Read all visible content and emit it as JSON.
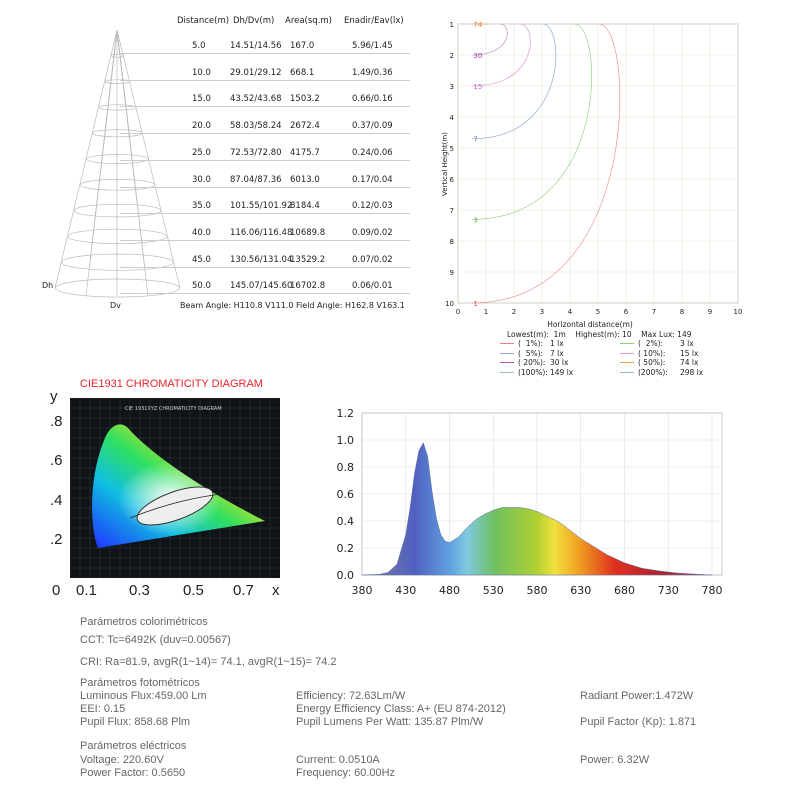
{
  "beam_table": {
    "headers": [
      "Distance(m)",
      "Dh/Dv(m)",
      "Area(sq.m)",
      "Enadir/Eav(lx)"
    ],
    "rows": [
      [
        "5.0",
        "14.51/14.56",
        "167.0",
        "5.96/1.45"
      ],
      [
        "10.0",
        "29.01/29.12",
        "668.1",
        "1.49/0.36"
      ],
      [
        "15.0",
        "43.52/43.68",
        "1503.2",
        "0.66/0.16"
      ],
      [
        "20.0",
        "58.03/58.24",
        "2672.4",
        "0.37/0.09"
      ],
      [
        "25.0",
        "72.53/72.80",
        "4175.7",
        "0.24/0.06"
      ],
      [
        "30.0",
        "87.04/87.36",
        "6013.0",
        "0.17/0.04"
      ],
      [
        "35.0",
        "101.55/101.92",
        "8184.4",
        "0.12/0.03"
      ],
      [
        "40.0",
        "116.06/116.48",
        "10689.8",
        "0.09/0.02"
      ],
      [
        "45.0",
        "130.56/131.04",
        "13529.2",
        "0.07/0.02"
      ],
      [
        "50.0",
        "145.07/145.60",
        "16702.8",
        "0.06/0.01"
      ]
    ],
    "dh_label": "Dh",
    "dv_label": "Dv",
    "angles": "Beam Angle: H110.8 V111.0  Field Angle: H162.8 V163.1"
  },
  "chart_data": [
    {
      "type": "line",
      "title": "",
      "xlabel": "Horizontal distance(m)",
      "ylabel": "Vertical Height(m)",
      "xlim": [
        0,
        10
      ],
      "ylim": [
        1,
        10
      ],
      "x_ticks": [
        "0",
        "1",
        "2",
        "3",
        "4",
        "5",
        "6",
        "7",
        "8",
        "9",
        "10"
      ],
      "y_ticks": [
        "1",
        "2",
        "3",
        "4",
        "5",
        "6",
        "7",
        "8",
        "9",
        "10"
      ],
      "grid": true,
      "contour_labels": [
        {
          "text": "74",
          "color": "#f08030"
        },
        {
          "text": "30",
          "color": "#a040a0"
        },
        {
          "text": "15",
          "color": "#c060c0"
        },
        {
          "text": "7",
          "color": "#5070c0"
        },
        {
          "text": "3",
          "color": "#60b040"
        },
        {
          "text": "1",
          "color": "#e05050"
        }
      ],
      "summary": "Lowest(m):  1m    Highest(m): 10    Max Lux: 149",
      "legend": [
        {
          "pct": "(  1%):",
          "lux": "1 lx",
          "color": "#f08080"
        },
        {
          "pct": "(  2%):",
          "lux": "3 lx",
          "color": "#90d070"
        },
        {
          "pct": "(  5%):",
          "lux": "7 lx",
          "color": "#90a8d8"
        },
        {
          "pct": "( 10%):",
          "lux": "15 lx",
          "color": "#e0a0e0"
        },
        {
          "pct": "( 20%):",
          "lux": "30 lx",
          "color": "#c050c0"
        },
        {
          "pct": "( 50%):",
          "lux": "74 lx",
          "color": "#f0a050"
        },
        {
          "pct": "(100%):",
          "lux": "149 lx",
          "color": "#90c8a8"
        },
        {
          "pct": "(200%):",
          "lux": "298 lx",
          "color": "#a0b0d0"
        }
      ]
    },
    {
      "type": "area",
      "title": "",
      "xlabel": "",
      "ylabel": "",
      "xlim": [
        380,
        780
      ],
      "ylim": [
        0,
        1.2
      ],
      "x_ticks": [
        "380",
        "430",
        "480",
        "530",
        "580",
        "630",
        "680",
        "730",
        "780"
      ],
      "y_ticks": [
        "0.0",
        "0.2",
        "0.4",
        "0.6",
        "0.8",
        "1.0",
        "1.2"
      ],
      "grid": true,
      "x": [
        380,
        400,
        410,
        420,
        430,
        435,
        440,
        445,
        450,
        455,
        460,
        465,
        470,
        475,
        480,
        490,
        500,
        510,
        520,
        530,
        540,
        550,
        560,
        570,
        580,
        590,
        600,
        610,
        620,
        630,
        640,
        650,
        660,
        670,
        680,
        690,
        700,
        720,
        740,
        760,
        780
      ],
      "values": [
        0,
        0.005,
        0.02,
        0.08,
        0.3,
        0.5,
        0.75,
        0.92,
        0.98,
        0.88,
        0.62,
        0.42,
        0.3,
        0.25,
        0.24,
        0.28,
        0.35,
        0.41,
        0.45,
        0.48,
        0.5,
        0.5,
        0.5,
        0.49,
        0.47,
        0.44,
        0.41,
        0.37,
        0.32,
        0.27,
        0.23,
        0.19,
        0.15,
        0.12,
        0.09,
        0.07,
        0.05,
        0.03,
        0.015,
        0.007,
        0
      ]
    }
  ],
  "cie": {
    "title": "CIE1931 CHROMATICITY DIAGRAM",
    "inner_title": "CIE 1931XYZ CHROMATICITY DIAGRAM",
    "y_axis": "y",
    "x_axis": "x",
    "y_ticks": [
      ".8",
      ".6",
      ".4",
      ".2"
    ],
    "x_ticks": [
      "0",
      "0.1",
      "0.3",
      "0.5",
      "0.7"
    ]
  },
  "params": {
    "color_title": "Parámetros colorimétricos",
    "cct": "CCT: Tc=6492K (duv=0.00567)",
    "cri": "CRI: Ra=81.9, avgR(1~14)= 74.1, avgR(1~15)= 74.2",
    "photo_title": "Parámetros fotométricos",
    "flux": "Luminous Flux:459.00 Lm",
    "eei": "EEI: 0.15",
    "pupil_flux": "Pupil Flux: 858.68 Plm",
    "efficiency": "Efficiency: 72.63Lm/W",
    "energy_class": "Energy Efficiency Class: A+ (EU 874-2012)",
    "pupil_lpw": "Pupil Lumens Per Watt: 135.87 Plm/W",
    "radiant": "Radiant Power:1.472W",
    "pupil_factor": "Pupil Factor (Kp): 1.871",
    "elec_title": "Parámetros eléctricos",
    "voltage": "Voltage: 220.60V",
    "pf": "Power Factor: 0.5650",
    "current": "Current: 0.0510A",
    "frequency": "Frequency: 60.00Hz",
    "power": "Power: 6.32W"
  }
}
